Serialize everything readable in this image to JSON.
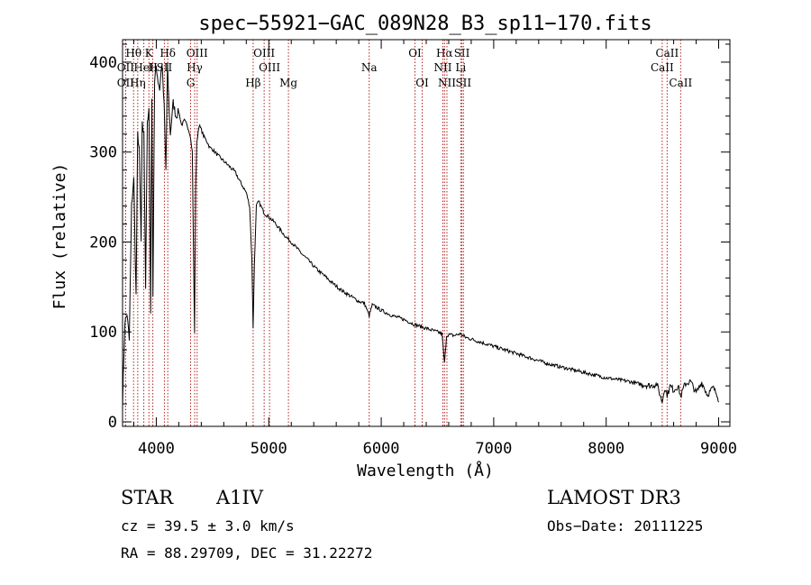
{
  "chart_data": {
    "type": "line",
    "title": "spec−55921−GAC_089N28_B3_sp11−170.fits",
    "xlabel": "Wavelength (Å)",
    "ylabel": "Flux (relative)",
    "xlim": [
      3700,
      9100
    ],
    "ylim": [
      -5,
      425
    ],
    "xticks": [
      4000,
      5000,
      6000,
      7000,
      8000,
      9000
    ],
    "xtick_labels": [
      "4000",
      "5000",
      "6000",
      "7000",
      "8000",
      "9000"
    ],
    "yticks": [
      0,
      100,
      200,
      300,
      400
    ],
    "ytick_labels": [
      "0",
      "100",
      "200",
      "300",
      "400"
    ],
    "series": [
      {
        "name": "flux",
        "x": [
          3700,
          3720,
          3740,
          3760,
          3780,
          3800,
          3820,
          3835,
          3850,
          3865,
          3875,
          3890,
          3905,
          3920,
          3935,
          3950,
          3960,
          3970,
          3985,
          4000,
          4015,
          4030,
          4050,
          4070,
          4085,
          4100,
          4110,
          4125,
          4150,
          4175,
          4200,
          4225,
          4250,
          4275,
          4300,
          4320,
          4340,
          4350,
          4360,
          4380,
          4400,
          4420,
          4450,
          4475,
          4500,
          4550,
          4600,
          4650,
          4700,
          4750,
          4800,
          4830,
          4850,
          4861,
          4872,
          4890,
          4910,
          4930,
          4960,
          5000,
          5050,
          5100,
          5150,
          5200,
          5250,
          5300,
          5350,
          5400,
          5450,
          5500,
          5550,
          5600,
          5650,
          5700,
          5750,
          5800,
          5850,
          5893,
          5920,
          5950,
          6000,
          6050,
          6100,
          6150,
          6200,
          6250,
          6300,
          6350,
          6400,
          6450,
          6500,
          6540,
          6563,
          6580,
          6600,
          6650,
          6700,
          6750,
          6800,
          6850,
          6900,
          6950,
          7000,
          7100,
          7200,
          7300,
          7400,
          7500,
          7600,
          7700,
          7800,
          7900,
          8000,
          8100,
          8200,
          8300,
          8400,
          8450,
          8498,
          8520,
          8542,
          8570,
          8600,
          8640,
          8662,
          8700,
          8750,
          8800,
          8850,
          8900,
          8950,
          8990,
          9000
        ],
        "values": [
          20,
          110,
          120,
          90,
          240,
          270,
          140,
          320,
          300,
          200,
          330,
          320,
          150,
          330,
          345,
          120,
          360,
          135,
          380,
          395,
          380,
          370,
          400,
          350,
          280,
          395,
          360,
          320,
          355,
          340,
          345,
          330,
          335,
          330,
          320,
          300,
          100,
          260,
          310,
          330,
          325,
          318,
          312,
          305,
          303,
          296,
          290,
          284,
          278,
          266,
          255,
          240,
          180,
          105,
          175,
          240,
          245,
          240,
          232,
          228,
          222,
          214,
          206,
          200,
          193,
          186,
          180,
          173,
          167,
          162,
          156,
          151,
          146,
          142,
          138,
          134,
          132,
          118,
          130,
          128,
          124,
          121,
          118,
          116,
          114,
          111,
          108,
          106,
          104,
          102,
          100,
          98,
          65,
          96,
          97,
          96,
          98,
          94,
          92,
          90,
          88,
          86,
          84,
          80,
          76,
          72,
          68,
          64,
          61,
          58,
          55,
          52,
          49,
          47,
          45,
          42,
          40,
          42,
          22,
          38,
          30,
          40,
          35,
          40,
          28,
          42,
          45,
          32,
          44,
          30,
          38,
          30,
          22
        ]
      }
    ],
    "spectral_lines": [
      {
        "label": "Hθ",
        "x": 3798,
        "row": 1
      },
      {
        "label": "OII",
        "x": 3727,
        "row": 2
      },
      {
        "label": "OII",
        "x": 3727,
        "row": 3
      },
      {
        "label": "Hη",
        "x": 3835,
        "row": 3
      },
      {
        "label": "HeI",
        "x": 3889,
        "row": 2
      },
      {
        "label": "K",
        "x": 3934,
        "row": 1
      },
      {
        "label": "H",
        "x": 3969,
        "row": 2
      },
      {
        "label": "Hδ",
        "x": 4102,
        "row": 1
      },
      {
        "label": "SII",
        "x": 4072,
        "row": 2
      },
      {
        "label": "OIII",
        "x": 4363,
        "row": 1
      },
      {
        "label": "Hγ",
        "x": 4341,
        "row": 2
      },
      {
        "label": "G",
        "x": 4305,
        "row": 3
      },
      {
        "label": "Hβ",
        "x": 4861,
        "row": 3
      },
      {
        "label": "OIII",
        "x": 4959,
        "row": 1
      },
      {
        "label": "OIII",
        "x": 5007,
        "row": 2
      },
      {
        "label": "Mg",
        "x": 5175,
        "row": 3
      },
      {
        "label": "Na",
        "x": 5893,
        "row": 2
      },
      {
        "label": "OI",
        "x": 6300,
        "row": 1
      },
      {
        "label": "OI",
        "x": 6364,
        "row": 3
      },
      {
        "label": "Hα",
        "x": 6563,
        "row": 1
      },
      {
        "label": "NII",
        "x": 6548,
        "row": 2
      },
      {
        "label": "NII",
        "x": 6584,
        "row": 3
      },
      {
        "label": "SII",
        "x": 6717,
        "row": 1
      },
      {
        "label": "Li",
        "x": 6707,
        "row": 2
      },
      {
        "label": "SII",
        "x": 6731,
        "row": 3
      },
      {
        "label": "CaII",
        "x": 8542,
        "row": 1
      },
      {
        "label": "CaII",
        "x": 8498,
        "row": 2
      },
      {
        "label": "CaII",
        "x": 8662,
        "row": 3
      }
    ]
  },
  "info": {
    "object_class": "STAR",
    "subclass": "A1IV",
    "survey": "LAMOST DR3",
    "redshift": "cz = 39.5 ± 3.0 km/s",
    "obs_date": "Obs−Date: 20111225",
    "coords": "RA =  88.29709, DEC =  31.22272"
  }
}
